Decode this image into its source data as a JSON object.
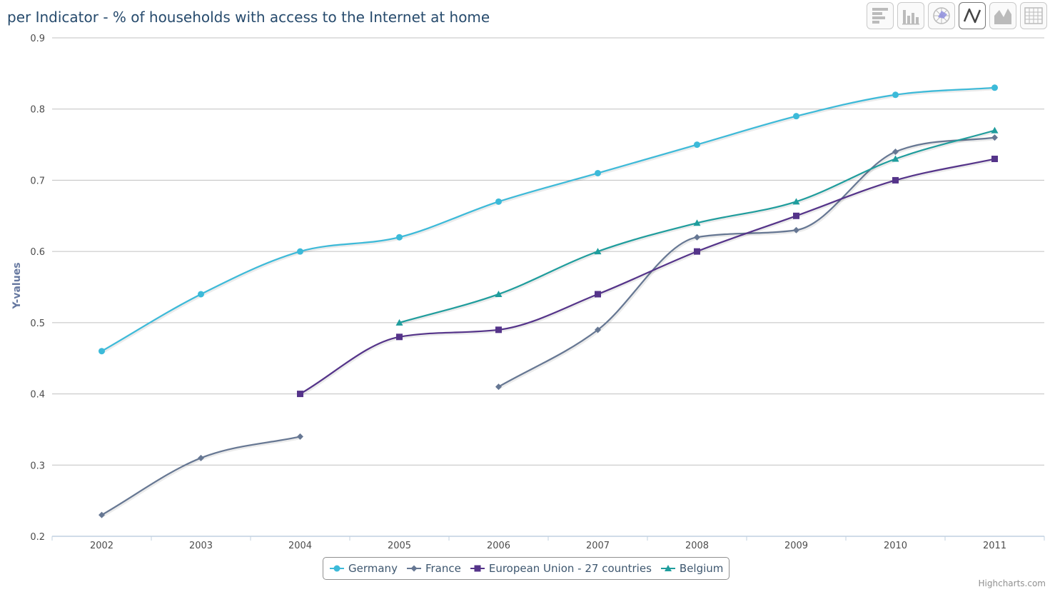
{
  "title": "per Indicator - % of households with access to the Internet at home",
  "toolbar": [
    {
      "icon": "horizontal-bar-chart-icon",
      "active": false
    },
    {
      "icon": "column-chart-icon",
      "active": false
    },
    {
      "icon": "radar-chart-icon",
      "active": false
    },
    {
      "icon": "line-chart-icon",
      "active": true
    },
    {
      "icon": "area-chart-icon",
      "active": false
    },
    {
      "icon": "table-icon",
      "active": false
    }
  ],
  "credits": "Highcharts.com",
  "chart_data": {
    "type": "line",
    "title": "per Indicator - % of households with access to the Internet at home",
    "xlabel": "",
    "ylabel": "Y-values",
    "categories": [
      "2002",
      "2003",
      "2004",
      "2005",
      "2006",
      "2007",
      "2008",
      "2009",
      "2010",
      "2011"
    ],
    "ylim": [
      0.2,
      0.9
    ],
    "yticks": [
      "0.2",
      "0.3",
      "0.4",
      "0.5",
      "0.6",
      "0.7",
      "0.8",
      "0.9"
    ],
    "grid": true,
    "legend_position": "bottom-center",
    "series": [
      {
        "name": "Germany",
        "color": "#3cbad9",
        "marker": "circle",
        "values": [
          0.46,
          0.54,
          0.6,
          0.62,
          0.67,
          0.71,
          0.75,
          0.79,
          0.82,
          0.83
        ]
      },
      {
        "name": "France",
        "color": "#667793",
        "marker": "diamond",
        "values": [
          0.23,
          0.31,
          0.34,
          null,
          0.41,
          0.49,
          0.62,
          0.63,
          0.74,
          0.76
        ]
      },
      {
        "name": "European Union - 27 countries",
        "color": "#55348a",
        "marker": "square",
        "values": [
          null,
          null,
          0.4,
          0.48,
          0.49,
          0.54,
          0.6,
          0.65,
          0.7,
          0.73
        ]
      },
      {
        "name": "Belgium",
        "color": "#1f9d9d",
        "marker": "triangle",
        "values": [
          null,
          null,
          null,
          0.5,
          0.54,
          0.6,
          0.64,
          0.67,
          0.73,
          0.77
        ]
      }
    ]
  }
}
